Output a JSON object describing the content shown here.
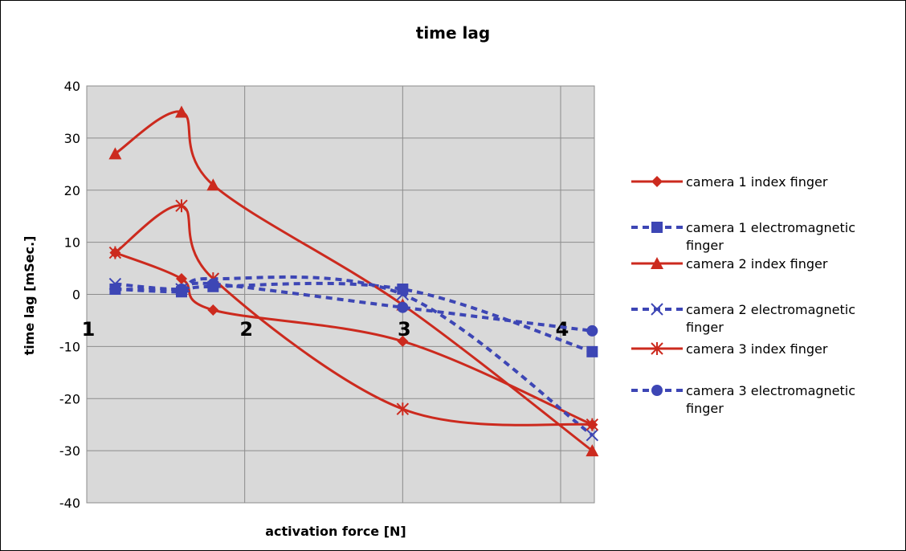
{
  "chart_data": {
    "type": "line",
    "title": "time lag",
    "xlabel": "activation force [N]",
    "ylabel": "time lag [mSec.]",
    "ylim": [
      -40,
      40
    ],
    "xlim": [
      1,
      4.2
    ],
    "yticks": [
      -40,
      -30,
      -20,
      -10,
      0,
      10,
      20,
      30,
      40
    ],
    "xtick_labels": [
      {
        "x": 1,
        "label": "1"
      },
      {
        "x": 2,
        "label": "2"
      },
      {
        "x": 3,
        "label": "3"
      },
      {
        "x": 4,
        "label": "4"
      }
    ],
    "grid": true,
    "legend_position": "right",
    "series": [
      {
        "name": "camera 1 index finger",
        "color": "#cc2a1e",
        "dash": "solid",
        "marker": "diamond",
        "x": [
          1.18,
          1.6,
          1.8,
          3.0,
          4.2
        ],
        "y": [
          8,
          3,
          -3,
          -9,
          -25
        ]
      },
      {
        "name": "camera 1 electromagnetic finger",
        "color": "#3d46b5",
        "dash": "dashed",
        "marker": "square",
        "x": [
          1.18,
          1.6,
          1.8,
          3.0,
          4.2
        ],
        "y": [
          1,
          0.5,
          1.5,
          1,
          -11
        ]
      },
      {
        "name": "camera 2 index finger",
        "color": "#cc2a1e",
        "dash": "solid",
        "marker": "triangle",
        "x": [
          1.18,
          1.6,
          1.8,
          3.0,
          4.2
        ],
        "y": [
          27,
          35,
          21,
          -2,
          -30
        ]
      },
      {
        "name": "camera 2 electromagnetic finger",
        "color": "#3d46b5",
        "dash": "dashed",
        "marker": "x",
        "x": [
          1.18,
          1.6,
          1.8,
          3.0,
          4.2
        ],
        "y": [
          2,
          1,
          3,
          0,
          -27
        ]
      },
      {
        "name": "camera 3 index finger",
        "color": "#cc2a1e",
        "dash": "solid",
        "marker": "star",
        "x": [
          1.18,
          1.6,
          1.8,
          3.0,
          4.2
        ],
        "y": [
          8,
          17,
          3,
          -22,
          -25
        ]
      },
      {
        "name": "camera 3 electromagnetic finger",
        "color": "#3d46b5",
        "dash": "dashed",
        "marker": "circle",
        "x": [
          1.18,
          1.6,
          1.8,
          3.0,
          4.2
        ],
        "y": [
          1,
          1,
          2,
          -2.5,
          -7
        ]
      }
    ]
  }
}
